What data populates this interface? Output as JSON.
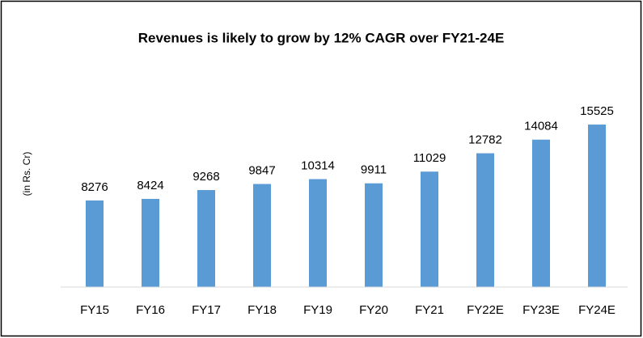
{
  "chart_data": {
    "type": "bar",
    "title": "Revenues is likely to grow by 12% CAGR over FY21-24E",
    "y_label": "(in Rs. Cr)",
    "categories": [
      "FY15",
      "FY16",
      "FY17",
      "FY18",
      "FY19",
      "FY20",
      "FY21",
      "FY22E",
      "FY23E",
      "FY24E"
    ],
    "values": [
      8276,
      8424,
      9268,
      9847,
      10314,
      9911,
      11029,
      12782,
      14084,
      15525
    ],
    "color": "#5b9bd5",
    "ylim": [
      0,
      18000
    ]
  }
}
